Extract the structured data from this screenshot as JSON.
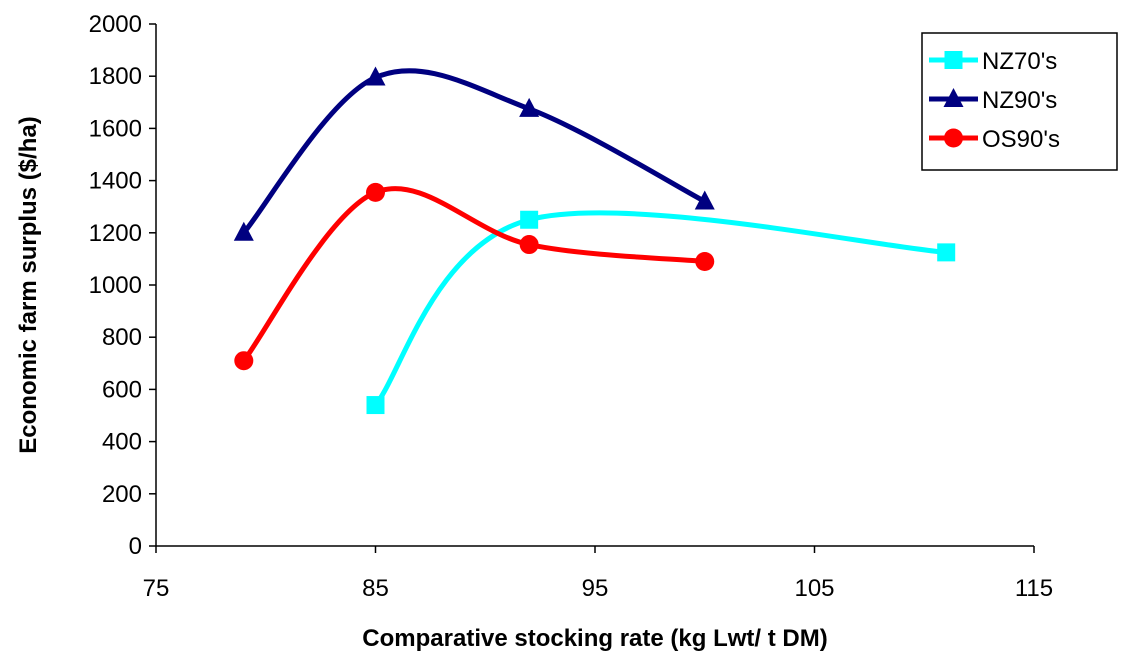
{
  "chart_data": {
    "type": "line",
    "title": "",
    "xlabel": "Comparative stocking rate (kg Lwt/ t DM)",
    "ylabel": "Economic farm surplus ($/ha)",
    "xlim": [
      75,
      115
    ],
    "ylim": [
      0,
      2000
    ],
    "xticks": [
      75,
      85,
      95,
      105,
      115
    ],
    "yticks": [
      0,
      200,
      400,
      600,
      800,
      1000,
      1200,
      1400,
      1600,
      1800,
      2000
    ],
    "grid": false,
    "legend_position": "top-right",
    "smooth": true,
    "series": [
      {
        "name": "NZ70's",
        "color": "#00ffff",
        "marker": "square",
        "points": [
          {
            "x": 85,
            "y": 540
          },
          {
            "x": 92,
            "y": 1250
          },
          {
            "x": 111,
            "y": 1125
          }
        ]
      },
      {
        "name": "NZ90's",
        "color": "#000080",
        "marker": "triangle",
        "points": [
          {
            "x": 79,
            "y": 1200
          },
          {
            "x": 85,
            "y": 1795
          },
          {
            "x": 92,
            "y": 1675
          },
          {
            "x": 100,
            "y": 1320
          }
        ]
      },
      {
        "name": "OS90's",
        "color": "#ff0000",
        "marker": "circle",
        "points": [
          {
            "x": 79,
            "y": 710
          },
          {
            "x": 85,
            "y": 1355
          },
          {
            "x": 92,
            "y": 1155
          },
          {
            "x": 100,
            "y": 1090
          }
        ]
      }
    ]
  }
}
